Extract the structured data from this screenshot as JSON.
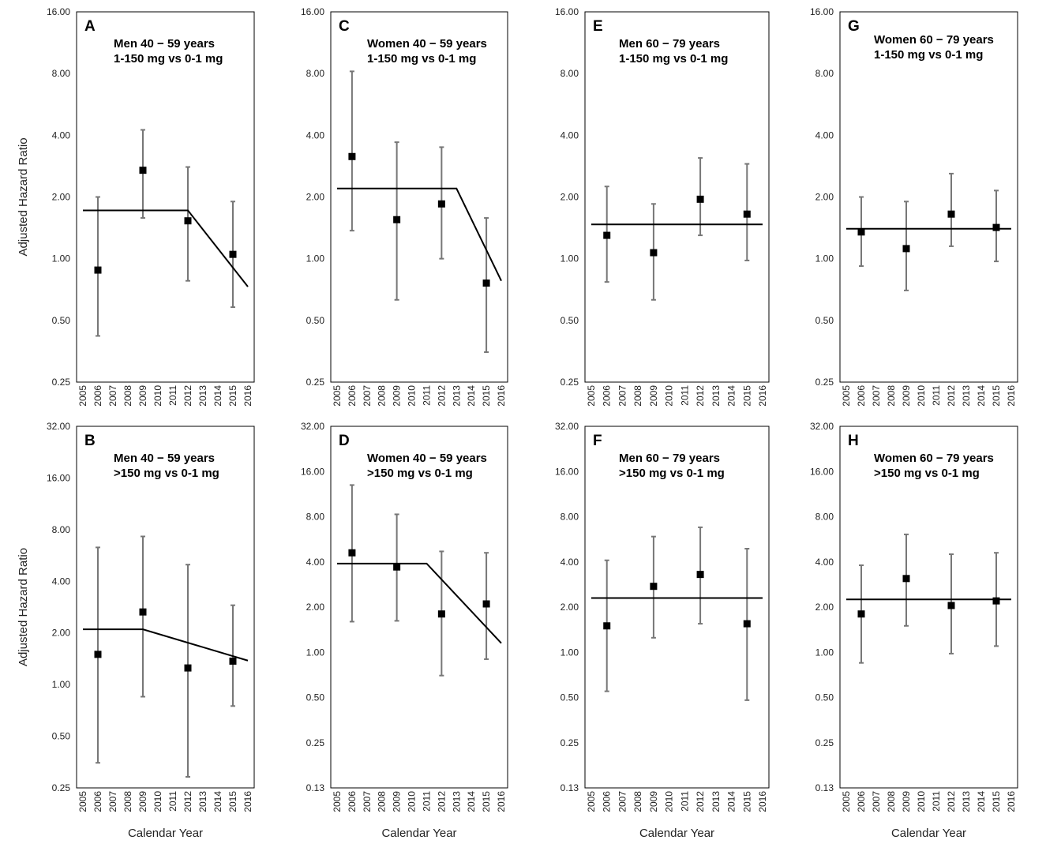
{
  "figure": {
    "ylabel": "Adjusted Hazard Ratio",
    "xlabel": "Calendar Year",
    "x_ticks": [
      "2005",
      "2006",
      "2007",
      "2008",
      "2009",
      "2010",
      "2011",
      "2012",
      "2013",
      "2014",
      "2015",
      "2016"
    ]
  },
  "chart_data": [
    {
      "type": "scatter",
      "panel": "A",
      "title": [
        "Men 40 − 59 years",
        "1-150 mg vs 0-1 mg"
      ],
      "y_scale": "log2",
      "ylim": [
        0.25,
        16
      ],
      "y_ticks": [
        "0.25",
        "0.50",
        "1.00",
        "2.00",
        "4.00",
        "8.00",
        "16.00"
      ],
      "points": [
        {
          "x": 2006,
          "hr": 0.88,
          "lower": 0.42,
          "upper": 2.0
        },
        {
          "x": 2009,
          "hr": 2.7,
          "lower": 1.58,
          "upper": 4.25
        },
        {
          "x": 2012,
          "hr": 1.53,
          "lower": 0.78,
          "upper": 2.8
        },
        {
          "x": 2015,
          "hr": 1.05,
          "lower": 0.58,
          "upper": 1.9
        }
      ],
      "trend": [
        [
          2005,
          1.72
        ],
        [
          2012,
          1.72
        ],
        [
          2016,
          0.73
        ]
      ]
    },
    {
      "type": "scatter",
      "panel": "B",
      "title": [
        "Men 40 − 59 years",
        ">150 mg vs 0-1 mg"
      ],
      "y_scale": "log2",
      "ylim": [
        0.25,
        32
      ],
      "y_ticks": [
        "0.25",
        "0.50",
        "1.00",
        "2.00",
        "4.00",
        "8.00",
        "16.00",
        "32.00"
      ],
      "points": [
        {
          "x": 2006,
          "hr": 1.5,
          "lower": 0.35,
          "upper": 6.3
        },
        {
          "x": 2009,
          "hr": 2.65,
          "lower": 0.85,
          "upper": 7.3
        },
        {
          "x": 2012,
          "hr": 1.25,
          "lower": 0.29,
          "upper": 5.0
        },
        {
          "x": 2015,
          "hr": 1.37,
          "lower": 0.75,
          "upper": 2.9
        }
      ],
      "trend": [
        [
          2005,
          2.1
        ],
        [
          2009,
          2.1
        ],
        [
          2016,
          1.38
        ]
      ]
    },
    {
      "type": "scatter",
      "panel": "C",
      "title": [
        "Women 40 − 59 years",
        "1-150 mg vs 0-1 mg"
      ],
      "y_scale": "log2",
      "ylim": [
        0.25,
        16
      ],
      "y_ticks": [
        "0.25",
        "0.50",
        "1.00",
        "2.00",
        "4.00",
        "8.00",
        "16.00"
      ],
      "points": [
        {
          "x": 2006,
          "hr": 3.15,
          "lower": 1.37,
          "upper": 8.2
        },
        {
          "x": 2009,
          "hr": 1.55,
          "lower": 0.63,
          "upper": 3.7
        },
        {
          "x": 2012,
          "hr": 1.85,
          "lower": 1.0,
          "upper": 3.5
        },
        {
          "x": 2015,
          "hr": 0.76,
          "lower": 0.35,
          "upper": 1.58
        }
      ],
      "trend": [
        [
          2005,
          2.2
        ],
        [
          2013,
          2.2
        ],
        [
          2016,
          0.78
        ]
      ]
    },
    {
      "type": "scatter",
      "panel": "D",
      "title": [
        "Women 40 − 59 years",
        ">150 mg vs 0-1 mg"
      ],
      "y_scale": "log2",
      "ylim": [
        0.125,
        32
      ],
      "y_ticks": [
        "0.13",
        "0.25",
        "0.50",
        "1.00",
        "2.00",
        "4.00",
        "8.00",
        "16.00",
        "32.00"
      ],
      "points": [
        {
          "x": 2006,
          "hr": 4.6,
          "lower": 1.6,
          "upper": 13.0
        },
        {
          "x": 2009,
          "hr": 3.7,
          "lower": 1.62,
          "upper": 8.3
        },
        {
          "x": 2012,
          "hr": 1.8,
          "lower": 0.7,
          "upper": 4.7
        },
        {
          "x": 2015,
          "hr": 2.1,
          "lower": 0.9,
          "upper": 4.6
        }
      ],
      "trend": [
        [
          2005,
          3.9
        ],
        [
          2011,
          3.9
        ],
        [
          2016,
          1.15
        ]
      ]
    },
    {
      "type": "scatter",
      "panel": "E",
      "title": [
        "Men 60 − 79 years",
        "1-150 mg vs 0-1 mg"
      ],
      "y_scale": "log2",
      "ylim": [
        0.25,
        16
      ],
      "y_ticks": [
        "0.25",
        "0.50",
        "1.00",
        "2.00",
        "4.00",
        "8.00",
        "16.00"
      ],
      "points": [
        {
          "x": 2006,
          "hr": 1.3,
          "lower": 0.77,
          "upper": 2.25
        },
        {
          "x": 2009,
          "hr": 1.07,
          "lower": 0.63,
          "upper": 1.85
        },
        {
          "x": 2012,
          "hr": 1.95,
          "lower": 1.3,
          "upper": 3.1
        },
        {
          "x": 2015,
          "hr": 1.65,
          "lower": 0.98,
          "upper": 2.9
        }
      ],
      "trend": [
        [
          2005,
          1.47
        ],
        [
          2016,
          1.47
        ]
      ]
    },
    {
      "type": "scatter",
      "panel": "F",
      "title": [
        "Men 60 − 79 years",
        ">150 mg vs 0-1 mg"
      ],
      "y_scale": "log2",
      "ylim": [
        0.125,
        32
      ],
      "y_ticks": [
        "0.13",
        "0.25",
        "0.50",
        "1.00",
        "2.00",
        "4.00",
        "8.00",
        "16.00",
        "32.00"
      ],
      "points": [
        {
          "x": 2006,
          "hr": 1.5,
          "lower": 0.55,
          "upper": 4.1
        },
        {
          "x": 2009,
          "hr": 2.75,
          "lower": 1.25,
          "upper": 5.9
        },
        {
          "x": 2012,
          "hr": 3.3,
          "lower": 1.55,
          "upper": 6.8
        },
        {
          "x": 2015,
          "hr": 1.55,
          "lower": 0.48,
          "upper": 4.9
        }
      ],
      "trend": [
        [
          2005,
          2.3
        ],
        [
          2016,
          2.3
        ]
      ]
    },
    {
      "type": "scatter",
      "panel": "G",
      "title": [
        "Women 60 − 79 years",
        "1-150 mg vs 0-1 mg"
      ],
      "y_scale": "log2",
      "ylim": [
        0.25,
        16
      ],
      "y_ticks": [
        "0.25",
        "0.50",
        "1.00",
        "2.00",
        "4.00",
        "8.00",
        "16.00"
      ],
      "points": [
        {
          "x": 2006,
          "hr": 1.35,
          "lower": 0.92,
          "upper": 2.0
        },
        {
          "x": 2009,
          "hr": 1.12,
          "lower": 0.7,
          "upper": 1.9
        },
        {
          "x": 2012,
          "hr": 1.65,
          "lower": 1.15,
          "upper": 2.6
        },
        {
          "x": 2015,
          "hr": 1.42,
          "lower": 0.97,
          "upper": 2.15
        }
      ],
      "trend": [
        [
          2005,
          1.4
        ],
        [
          2016,
          1.4
        ]
      ]
    },
    {
      "type": "scatter",
      "panel": "H",
      "title": [
        "Women 60 − 79 years",
        ">150 mg vs 0-1 mg"
      ],
      "y_scale": "log2",
      "ylim": [
        0.125,
        32
      ],
      "y_ticks": [
        "0.13",
        "0.25",
        "0.50",
        "1.00",
        "2.00",
        "4.00",
        "8.00",
        "16.00",
        "32.00"
      ],
      "points": [
        {
          "x": 2006,
          "hr": 1.8,
          "lower": 0.85,
          "upper": 3.8
        },
        {
          "x": 2009,
          "hr": 3.1,
          "lower": 1.5,
          "upper": 6.1
        },
        {
          "x": 2012,
          "hr": 2.05,
          "lower": 0.98,
          "upper": 4.5
        },
        {
          "x": 2015,
          "hr": 2.2,
          "lower": 1.1,
          "upper": 4.6
        }
      ],
      "trend": [
        [
          2005,
          2.25
        ],
        [
          2016,
          2.25
        ]
      ]
    }
  ]
}
